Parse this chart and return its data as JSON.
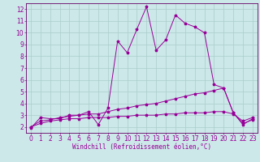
{
  "xlabel": "Windchill (Refroidissement éolien,°C)",
  "bg_color": "#cce8e8",
  "grid_color": "#aacccc",
  "line_color": "#990099",
  "spine_color": "#660066",
  "xlim": [
    -0.5,
    23.5
  ],
  "ylim": [
    1.5,
    12.5
  ],
  "yticks": [
    2,
    3,
    4,
    5,
    6,
    7,
    8,
    9,
    10,
    11,
    12
  ],
  "xticks": [
    0,
    1,
    2,
    3,
    4,
    5,
    6,
    7,
    8,
    9,
    10,
    11,
    12,
    13,
    14,
    15,
    16,
    17,
    18,
    19,
    20,
    21,
    22,
    23
  ],
  "series1_x": [
    0,
    1,
    2,
    3,
    4,
    5,
    6,
    7,
    8,
    9,
    10,
    11,
    12,
    13,
    14,
    15,
    16,
    17,
    18,
    19,
    20,
    21,
    22,
    23
  ],
  "series1_y": [
    1.9,
    2.8,
    2.7,
    2.7,
    3.0,
    3.0,
    3.3,
    2.2,
    3.6,
    9.3,
    8.3,
    10.3,
    12.2,
    8.5,
    9.4,
    11.5,
    10.8,
    10.5,
    10.0,
    5.6,
    5.3,
    3.2,
    2.2,
    2.7
  ],
  "series2_x": [
    0,
    1,
    2,
    3,
    4,
    5,
    6,
    7,
    8,
    9,
    10,
    11,
    12,
    13,
    14,
    15,
    16,
    17,
    18,
    19,
    20,
    21,
    22,
    23
  ],
  "series2_y": [
    2.0,
    2.5,
    2.6,
    2.8,
    2.9,
    3.0,
    3.1,
    3.1,
    3.3,
    3.5,
    3.6,
    3.8,
    3.9,
    4.0,
    4.2,
    4.4,
    4.6,
    4.8,
    4.9,
    5.1,
    5.3,
    3.2,
    2.3,
    2.6
  ],
  "series3_x": [
    0,
    1,
    2,
    3,
    4,
    5,
    6,
    7,
    8,
    9,
    10,
    11,
    12,
    13,
    14,
    15,
    16,
    17,
    18,
    19,
    20,
    21,
    22,
    23
  ],
  "series3_y": [
    2.0,
    2.3,
    2.5,
    2.6,
    2.7,
    2.7,
    2.8,
    2.8,
    2.8,
    2.9,
    2.9,
    3.0,
    3.0,
    3.0,
    3.1,
    3.1,
    3.2,
    3.2,
    3.2,
    3.3,
    3.3,
    3.1,
    2.5,
    2.8
  ],
  "tick_fontsize": 5.5,
  "xlabel_fontsize": 5.5,
  "linewidth": 0.7,
  "markersize": 2.5
}
